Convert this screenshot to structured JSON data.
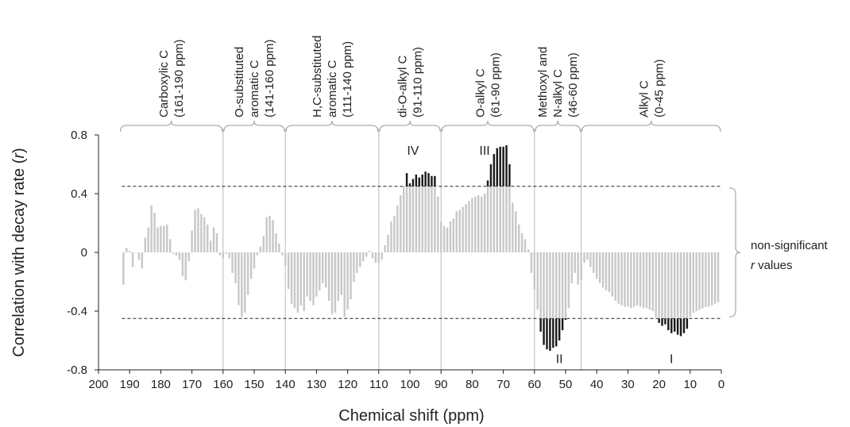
{
  "chart_data": {
    "type": "bar",
    "xlabel": "Chemical shift (ppm)",
    "ylabel_main": "Correlation with decay rate (",
    "ylabel_var": "r",
    "ylabel_end": ")",
    "xlim": [
      200,
      0
    ],
    "ylim": [
      -0.8,
      0.8
    ],
    "x_ticks": [
      200,
      190,
      180,
      170,
      160,
      150,
      140,
      130,
      120,
      110,
      100,
      90,
      80,
      70,
      60,
      50,
      40,
      30,
      20,
      10,
      0
    ],
    "y_ticks": [
      -0.8,
      -0.4,
      0,
      0.4,
      0.8
    ],
    "y_tick_labels": [
      "-0.8",
      "-0.4",
      "0",
      "0.4",
      "0.8"
    ],
    "significance_threshold": 0.45,
    "significant_color": "#1a1a1a",
    "nonsignificant_color": "#c8c8c8",
    "dividers": [
      160,
      140,
      110,
      90,
      60,
      45
    ],
    "regions": [
      {
        "lines": [
          "Carboxylic C",
          "(161-190 ppm)"
        ],
        "start": 190,
        "end": 161
      },
      {
        "lines": [
          "O-substituted",
          "aromatic C",
          "(141-160 ppm)"
        ],
        "start": 160,
        "end": 141
      },
      {
        "lines": [
          "H,C-substituted",
          "aromatic C",
          "(111-140 ppm)"
        ],
        "start": 140,
        "end": 111
      },
      {
        "lines": [
          "di-O-alkyl C",
          "(91-110 ppm)"
        ],
        "start": 110,
        "end": 91
      },
      {
        "lines": [
          "O-alkyl C",
          "(61-90 ppm)"
        ],
        "start": 90,
        "end": 61
      },
      {
        "lines": [
          "Methoxyl and",
          "N-alkyl C",
          "(46-60 ppm)"
        ],
        "start": 60,
        "end": 46
      },
      {
        "lines": [
          "Alkyl C",
          "(0-45 ppm)"
        ],
        "start": 45,
        "end": 0
      }
    ],
    "peak_labels": [
      {
        "text": "IV",
        "x": 99,
        "y": 0.72
      },
      {
        "text": "III",
        "x": 76,
        "y": 0.72
      },
      {
        "text": "II",
        "x": 52,
        "y": -0.7
      },
      {
        "text": "I",
        "x": 16,
        "y": -0.7
      }
    ],
    "nonsig_label_line1": "non-significant",
    "nonsig_label_var": "r",
    "nonsig_label_rest": " values",
    "bars": [
      {
        "x": 192,
        "v": -0.22
      },
      {
        "x": 191,
        "v": 0.03
      },
      {
        "x": 190,
        "v": 0.01
      },
      {
        "x": 189,
        "v": -0.1
      },
      {
        "x": 188,
        "v": 0.0
      },
      {
        "x": 187,
        "v": -0.05
      },
      {
        "x": 186,
        "v": -0.11
      },
      {
        "x": 185,
        "v": 0.1
      },
      {
        "x": 184,
        "v": 0.17
      },
      {
        "x": 183,
        "v": 0.32
      },
      {
        "x": 182,
        "v": 0.27
      },
      {
        "x": 181,
        "v": 0.17
      },
      {
        "x": 180,
        "v": 0.18
      },
      {
        "x": 179,
        "v": 0.18
      },
      {
        "x": 178,
        "v": 0.19
      },
      {
        "x": 177,
        "v": 0.09
      },
      {
        "x": 176,
        "v": -0.01
      },
      {
        "x": 175,
        "v": -0.02
      },
      {
        "x": 174,
        "v": -0.05
      },
      {
        "x": 173,
        "v": -0.16
      },
      {
        "x": 172,
        "v": -0.19
      },
      {
        "x": 171,
        "v": -0.06
      },
      {
        "x": 170,
        "v": 0.15
      },
      {
        "x": 169,
        "v": 0.29
      },
      {
        "x": 168,
        "v": 0.3
      },
      {
        "x": 167,
        "v": 0.26
      },
      {
        "x": 166,
        "v": 0.24
      },
      {
        "x": 165,
        "v": 0.19
      },
      {
        "x": 164,
        "v": 0.08
      },
      {
        "x": 163,
        "v": 0.17
      },
      {
        "x": 162,
        "v": 0.13
      },
      {
        "x": 161,
        "v": -0.02
      },
      {
        "x": 160,
        "v": -0.04
      },
      {
        "x": 159,
        "v": -0.01
      },
      {
        "x": 158,
        "v": -0.04
      },
      {
        "x": 157,
        "v": -0.14
      },
      {
        "x": 156,
        "v": -0.21
      },
      {
        "x": 155,
        "v": -0.36
      },
      {
        "x": 154,
        "v": -0.44
      },
      {
        "x": 153,
        "v": -0.41
      },
      {
        "x": 152,
        "v": -0.29
      },
      {
        "x": 151,
        "v": -0.18
      },
      {
        "x": 150,
        "v": -0.11
      },
      {
        "x": 149,
        "v": -0.02
      },
      {
        "x": 148,
        "v": 0.04
      },
      {
        "x": 147,
        "v": 0.11
      },
      {
        "x": 146,
        "v": 0.24
      },
      {
        "x": 145,
        "v": 0.25
      },
      {
        "x": 144,
        "v": 0.22
      },
      {
        "x": 143,
        "v": 0.13
      },
      {
        "x": 142,
        "v": 0.06
      },
      {
        "x": 141,
        "v": -0.02
      },
      {
        "x": 140,
        "v": -0.09
      },
      {
        "x": 139,
        "v": -0.25
      },
      {
        "x": 138,
        "v": -0.35
      },
      {
        "x": 137,
        "v": -0.38
      },
      {
        "x": 136,
        "v": -0.41
      },
      {
        "x": 135,
        "v": -0.36
      },
      {
        "x": 134,
        "v": -0.4
      },
      {
        "x": 133,
        "v": -0.3
      },
      {
        "x": 132,
        "v": -0.33
      },
      {
        "x": 131,
        "v": -0.36
      },
      {
        "x": 130,
        "v": -0.3
      },
      {
        "x": 129,
        "v": -0.26
      },
      {
        "x": 128,
        "v": -0.21
      },
      {
        "x": 127,
        "v": -0.24
      },
      {
        "x": 126,
        "v": -0.33
      },
      {
        "x": 125,
        "v": -0.42
      },
      {
        "x": 124,
        "v": -0.41
      },
      {
        "x": 123,
        "v": -0.33
      },
      {
        "x": 122,
        "v": -0.29
      },
      {
        "x": 121,
        "v": -0.44
      },
      {
        "x": 120,
        "v": -0.39
      },
      {
        "x": 119,
        "v": -0.32
      },
      {
        "x": 118,
        "v": -0.2
      },
      {
        "x": 117,
        "v": -0.14
      },
      {
        "x": 116,
        "v": -0.1
      },
      {
        "x": 115,
        "v": -0.06
      },
      {
        "x": 114,
        "v": -0.03
      },
      {
        "x": 113,
        "v": 0.01
      },
      {
        "x": 112,
        "v": -0.04
      },
      {
        "x": 111,
        "v": -0.07
      },
      {
        "x": 110,
        "v": -0.07
      },
      {
        "x": 109,
        "v": -0.05
      },
      {
        "x": 108,
        "v": 0.05
      },
      {
        "x": 107,
        "v": 0.12
      },
      {
        "x": 106,
        "v": 0.21
      },
      {
        "x": 105,
        "v": 0.25
      },
      {
        "x": 104,
        "v": 0.32
      },
      {
        "x": 103,
        "v": 0.39
      },
      {
        "x": 102,
        "v": 0.45
      },
      {
        "x": 101,
        "v": 0.54
      },
      {
        "x": 100,
        "v": 0.47
      },
      {
        "x": 99,
        "v": 0.5
      },
      {
        "x": 98,
        "v": 0.53
      },
      {
        "x": 97,
        "v": 0.51
      },
      {
        "x": 96,
        "v": 0.53
      },
      {
        "x": 95,
        "v": 0.55
      },
      {
        "x": 94,
        "v": 0.54
      },
      {
        "x": 93,
        "v": 0.52
      },
      {
        "x": 92,
        "v": 0.52
      },
      {
        "x": 91,
        "v": 0.38
      },
      {
        "x": 90,
        "v": 0.21
      },
      {
        "x": 89,
        "v": 0.18
      },
      {
        "x": 88,
        "v": 0.17
      },
      {
        "x": 87,
        "v": 0.21
      },
      {
        "x": 86,
        "v": 0.23
      },
      {
        "x": 85,
        "v": 0.28
      },
      {
        "x": 84,
        "v": 0.29
      },
      {
        "x": 83,
        "v": 0.31
      },
      {
        "x": 82,
        "v": 0.33
      },
      {
        "x": 81,
        "v": 0.35
      },
      {
        "x": 80,
        "v": 0.37
      },
      {
        "x": 79,
        "v": 0.38
      },
      {
        "x": 78,
        "v": 0.39
      },
      {
        "x": 77,
        "v": 0.38
      },
      {
        "x": 76,
        "v": 0.4
      },
      {
        "x": 75,
        "v": 0.49
      },
      {
        "x": 74,
        "v": 0.6
      },
      {
        "x": 73,
        "v": 0.67
      },
      {
        "x": 72,
        "v": 0.71
      },
      {
        "x": 71,
        "v": 0.72
      },
      {
        "x": 70,
        "v": 0.72
      },
      {
        "x": 69,
        "v": 0.73
      },
      {
        "x": 68,
        "v": 0.6
      },
      {
        "x": 67,
        "v": 0.34
      },
      {
        "x": 66,
        "v": 0.28
      },
      {
        "x": 65,
        "v": 0.19
      },
      {
        "x": 64,
        "v": 0.13
      },
      {
        "x": 63,
        "v": 0.09
      },
      {
        "x": 62,
        "v": 0.02
      },
      {
        "x": 61,
        "v": -0.14
      },
      {
        "x": 60,
        "v": -0.25
      },
      {
        "x": 59,
        "v": -0.39
      },
      {
        "x": 58,
        "v": -0.54
      },
      {
        "x": 57,
        "v": -0.63
      },
      {
        "x": 56,
        "v": -0.66
      },
      {
        "x": 55,
        "v": -0.67
      },
      {
        "x": 54,
        "v": -0.65
      },
      {
        "x": 53,
        "v": -0.64
      },
      {
        "x": 52,
        "v": -0.6
      },
      {
        "x": 51,
        "v": -0.53
      },
      {
        "x": 50,
        "v": -0.46
      },
      {
        "x": 49,
        "v": -0.38
      },
      {
        "x": 48,
        "v": -0.21
      },
      {
        "x": 47,
        "v": -0.14
      },
      {
        "x": 46,
        "v": -0.22
      },
      {
        "x": 45,
        "v": -0.19
      },
      {
        "x": 44,
        "v": -0.07
      },
      {
        "x": 43,
        "v": -0.05
      },
      {
        "x": 42,
        "v": -0.1
      },
      {
        "x": 41,
        "v": -0.14
      },
      {
        "x": 40,
        "v": -0.18
      },
      {
        "x": 39,
        "v": -0.21
      },
      {
        "x": 38,
        "v": -0.24
      },
      {
        "x": 37,
        "v": -0.26
      },
      {
        "x": 36,
        "v": -0.27
      },
      {
        "x": 35,
        "v": -0.3
      },
      {
        "x": 34,
        "v": -0.33
      },
      {
        "x": 33,
        "v": -0.35
      },
      {
        "x": 32,
        "v": -0.36
      },
      {
        "x": 31,
        "v": -0.37
      },
      {
        "x": 30,
        "v": -0.37
      },
      {
        "x": 29,
        "v": -0.38
      },
      {
        "x": 28,
        "v": -0.37
      },
      {
        "x": 27,
        "v": -0.36
      },
      {
        "x": 26,
        "v": -0.37
      },
      {
        "x": 25,
        "v": -0.38
      },
      {
        "x": 24,
        "v": -0.38
      },
      {
        "x": 23,
        "v": -0.39
      },
      {
        "x": 22,
        "v": -0.4
      },
      {
        "x": 21,
        "v": -0.44
      },
      {
        "x": 20,
        "v": -0.48
      },
      {
        "x": 19,
        "v": -0.5
      },
      {
        "x": 18,
        "v": -0.49
      },
      {
        "x": 17,
        "v": -0.53
      },
      {
        "x": 16,
        "v": -0.55
      },
      {
        "x": 15,
        "v": -0.54
      },
      {
        "x": 14,
        "v": -0.56
      },
      {
        "x": 13,
        "v": -0.57
      },
      {
        "x": 12,
        "v": -0.55
      },
      {
        "x": 11,
        "v": -0.52
      },
      {
        "x": 10,
        "v": -0.44
      },
      {
        "x": 9,
        "v": -0.41
      },
      {
        "x": 8,
        "v": -0.4
      },
      {
        "x": 7,
        "v": -0.39
      },
      {
        "x": 6,
        "v": -0.38
      },
      {
        "x": 5,
        "v": -0.37
      },
      {
        "x": 4,
        "v": -0.37
      },
      {
        "x": 3,
        "v": -0.36
      },
      {
        "x": 2,
        "v": -0.35
      },
      {
        "x": 1,
        "v": -0.34
      }
    ]
  }
}
